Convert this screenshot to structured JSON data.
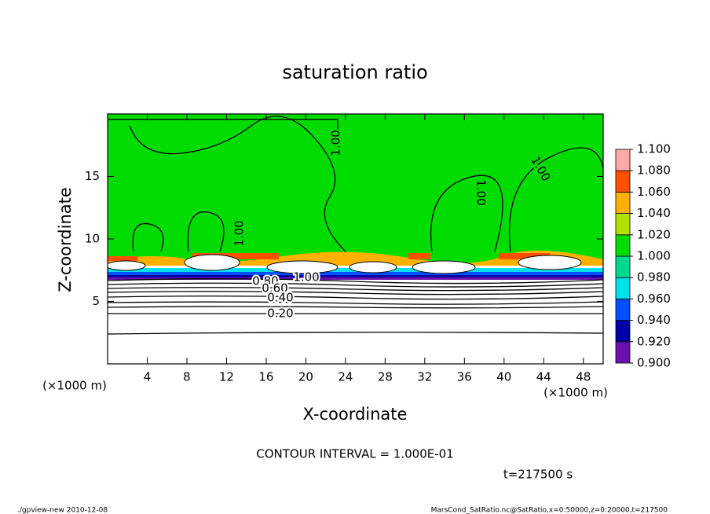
{
  "chart_data": {
    "type": "contour",
    "title": "saturation ratio",
    "x_label": "X-coordinate",
    "y_label": "Z-coordinate",
    "x_unit": "(×1000 m)",
    "y_unit": "(×1000 m)",
    "xlim": [
      0,
      50
    ],
    "xticks": [
      4,
      8,
      12,
      16,
      20,
      24,
      28,
      32,
      36,
      40,
      44,
      48
    ],
    "ylim": [
      0,
      20
    ],
    "yticks": [
      5,
      10,
      15
    ],
    "colorbar": {
      "ticks": [
        {
          "value": 0.9,
          "label": "0.900"
        },
        {
          "value": 0.92,
          "label": "0.920"
        },
        {
          "value": 0.94,
          "label": "0.940"
        },
        {
          "value": 0.96,
          "label": "0.960"
        },
        {
          "value": 0.98,
          "label": "0.980"
        },
        {
          "value": 1.0,
          "label": "1.000"
        },
        {
          "value": 1.02,
          "label": "1.020"
        },
        {
          "value": 1.04,
          "label": "1.040"
        },
        {
          "value": 1.06,
          "label": "1.060"
        },
        {
          "value": 1.08,
          "label": "1.080"
        },
        {
          "value": 1.1,
          "label": "1.100"
        }
      ],
      "colors": [
        "#6a10b0",
        "#0000a8",
        "#0050ff",
        "#00e0e8",
        "#00d890",
        "#00dc00",
        "#b4e000",
        "#ffb000",
        "#ff5000",
        "#ffa8a8"
      ]
    },
    "contour_labels": [
      "1.00",
      "1.00",
      "1.00",
      "1.00",
      "0.80",
      "1.00",
      "0.60",
      "0.40",
      "0.20"
    ],
    "contour_interval": "CONTOUR INTERVAL = 1.000E-01",
    "time": "t=217500 s",
    "footer_left": "./gpview-new   2010-12-08",
    "footer_right": "MarsCond_SatRatio.nc@SatRatio,x=0:50000,z=0:20000,t=217500"
  }
}
